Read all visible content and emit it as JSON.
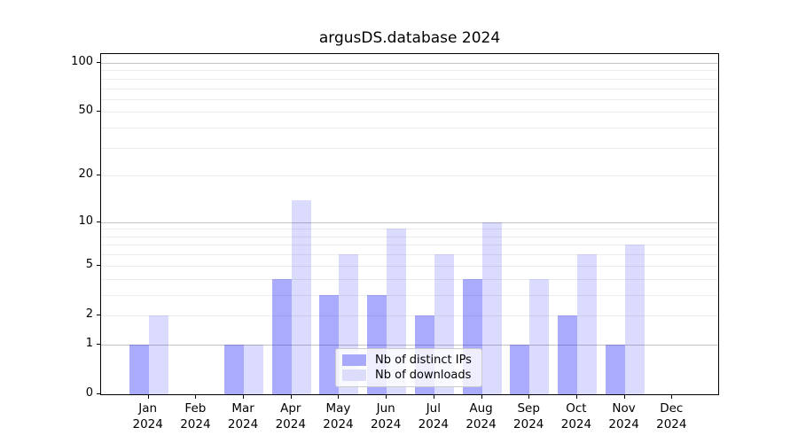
{
  "chart_data": {
    "type": "bar",
    "title": "argusDS.database 2024",
    "x_year_label": "2024",
    "categories": [
      "Jan",
      "Feb",
      "Mar",
      "Apr",
      "May",
      "Jun",
      "Jul",
      "Aug",
      "Sep",
      "Oct",
      "Nov",
      "Dec"
    ],
    "series": [
      {
        "name": "Nb of distinct IPs",
        "color": "rgba(10,10,250,0.34)",
        "swatch_hex": "#a9a9fb",
        "values": [
          1,
          0,
          1,
          4,
          3,
          3,
          2,
          4,
          1,
          2,
          1,
          0
        ]
      },
      {
        "name": "Nb of downloads",
        "color": "rgba(10,10,250,0.145)",
        "swatch_hex": "#dcdcfb",
        "values": [
          2,
          0,
          1,
          14,
          6,
          9,
          6,
          10,
          4,
          6,
          7,
          0
        ]
      }
    ],
    "y_axis": {
      "scale": "log1p",
      "tick_labels": [
        "0",
        "1",
        "2",
        "5",
        "10",
        "20",
        "50",
        "100"
      ],
      "tick_values": [
        0,
        1,
        2,
        5,
        10,
        20,
        50,
        100
      ],
      "minor_gridlines": [
        2,
        3,
        4,
        5,
        6,
        7,
        8,
        9,
        20,
        30,
        40,
        50,
        60,
        70,
        80,
        90
      ],
      "major_gridlines": [
        1,
        10,
        100
      ],
      "ylim": [
        0,
        113
      ]
    },
    "legend": {
      "entries": [
        "Nb of distinct IPs",
        "Nb of downloads"
      ],
      "position": "lower center"
    },
    "colors": {
      "grid_minor": "#ededed",
      "grid_major": "#c4c4c4",
      "axis": "#000000"
    }
  }
}
